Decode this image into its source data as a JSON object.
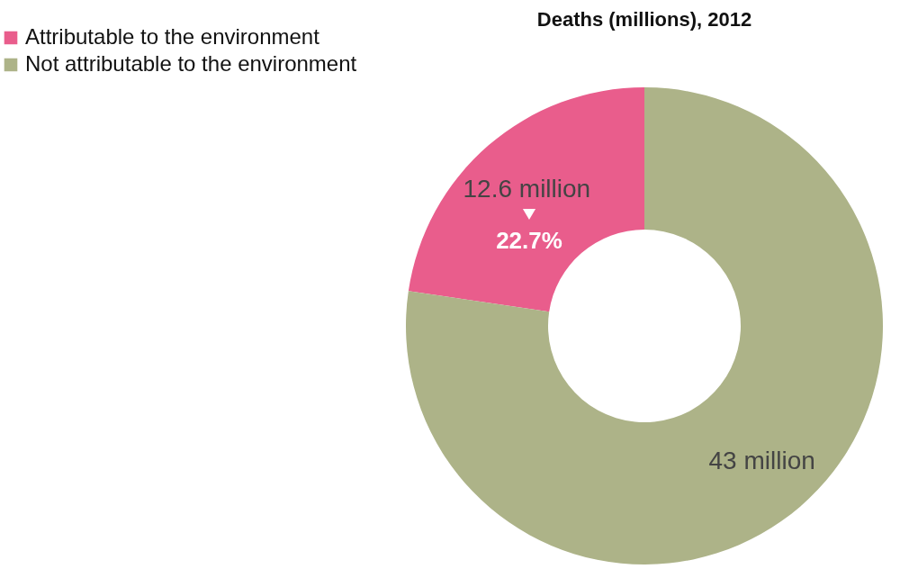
{
  "chart_data": {
    "type": "donut",
    "title": "Deaths (millions), 2012",
    "categories": [
      "Attributable to the environment",
      "Not attributable to the environment"
    ],
    "values": [
      12.6,
      43
    ],
    "colors": [
      "#e95d8c",
      "#adb388"
    ],
    "value_labels": [
      "12.6 million",
      "43 million"
    ],
    "annotations": [
      "22.7%"
    ],
    "legend": "top left"
  }
}
